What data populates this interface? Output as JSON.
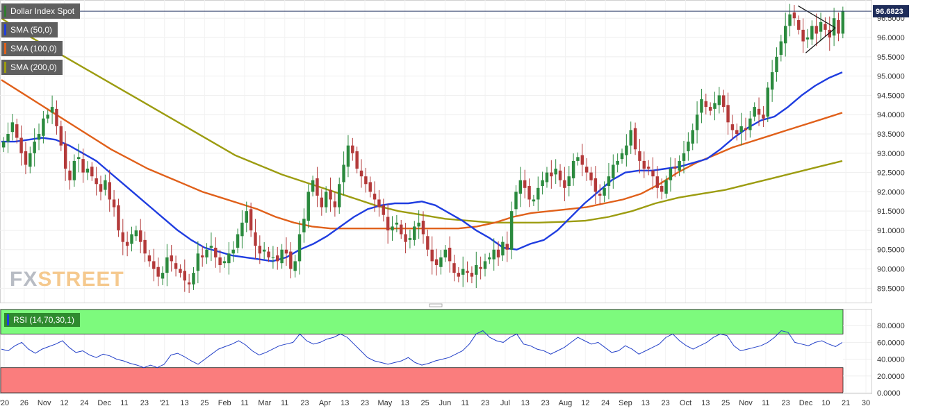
{
  "chart_data": {
    "type": "candlestick",
    "legend": {
      "main": "Dollar Index Spot",
      "series": [
        {
          "name": "SMA (50,0)",
          "color": "#1f3de0"
        },
        {
          "name": "SMA (100,0)",
          "color": "#e0601a"
        },
        {
          "name": "SMA (200,0)",
          "color": "#9c9c10"
        }
      ]
    },
    "last_price": "96.6823",
    "price_axis": {
      "ylim": [
        89.2,
        96.9
      ],
      "ticks": [
        "96.5000",
        "96.0000",
        "95.5000",
        "95.0000",
        "94.5000",
        "94.0000",
        "93.5000",
        "93.0000",
        "92.5000",
        "92.0000",
        "91.5000",
        "91.0000",
        "90.5000",
        "90.0000",
        "89.5000"
      ]
    },
    "x_axis": {
      "ticks": [
        "'20",
        "26",
        "Nov",
        "12",
        "24",
        "Dec",
        "11",
        "23",
        "'21",
        "13",
        "25",
        "Feb",
        "11",
        "Mar",
        "11",
        "23",
        "Apr",
        "13",
        "23",
        "May",
        "13",
        "25",
        "Jun",
        "11",
        "23",
        "Jul",
        "13",
        "23",
        "Aug",
        "12",
        "24",
        "Sep",
        "13",
        "23",
        "Oct",
        "13",
        "25",
        "Nov",
        "11",
        "23",
        "Dec",
        "10",
        "21",
        "30"
      ]
    },
    "close": [
      93.3,
      93.5,
      93.8,
      93.4,
      93.0,
      92.7,
      93.0,
      93.3,
      93.5,
      93.9,
      94.0,
      94.2,
      93.7,
      93.2,
      92.6,
      92.3,
      92.8,
      92.9,
      92.5,
      92.6,
      92.4,
      92.2,
      92.0,
      92.3,
      91.8,
      91.6,
      91.0,
      90.7,
      90.6,
      90.9,
      91.0,
      90.7,
      90.4,
      90.2,
      90.0,
      89.8,
      89.9,
      90.3,
      90.2,
      90.0,
      89.9,
      89.7,
      89.6,
      89.9,
      90.4,
      90.3,
      90.5,
      90.6,
      90.3,
      90.1,
      90.2,
      90.4,
      90.5,
      90.9,
      91.2,
      91.5,
      91.0,
      90.6,
      90.4,
      90.5,
      90.3,
      90.3,
      90.2,
      90.5,
      90.4,
      90.0,
      90.2,
      90.9,
      91.3,
      92.0,
      92.3,
      91.9,
      91.6,
      92.0,
      91.8,
      91.6,
      92.2,
      92.7,
      93.2,
      93.0,
      92.6,
      92.4,
      92.2,
      92.0,
      91.8,
      91.6,
      91.4,
      91.0,
      91.1,
      91.2,
      90.9,
      90.7,
      90.8,
      91.1,
      91.2,
      90.9,
      90.5,
      90.2,
      90.1,
      90.3,
      90.5,
      90.2,
      89.9,
      89.8,
      90.0,
      89.9,
      89.8,
      90.1,
      90.0,
      90.2,
      90.3,
      90.5,
      90.3,
      90.7,
      90.5,
      91.5,
      92.0,
      92.3,
      92.1,
      91.8,
      91.8,
      92.1,
      92.3,
      92.5,
      92.4,
      92.6,
      92.3,
      92.1,
      92.4,
      92.8,
      92.9,
      92.7,
      92.5,
      92.3,
      92.0,
      91.9,
      92.1,
      92.4,
      92.7,
      92.8,
      93.0,
      93.2,
      93.6,
      93.1,
      92.8,
      92.6,
      92.6,
      92.4,
      92.1,
      92.0,
      92.3,
      92.6,
      92.6,
      92.8,
      93.0,
      93.3,
      93.6,
      94.0,
      94.4,
      94.2,
      94.1,
      94.3,
      94.5,
      94.2,
      93.8,
      93.6,
      93.5,
      93.7,
      93.6,
      93.9,
      94.2,
      94.0,
      93.9,
      94.7,
      95.1,
      95.5,
      95.9,
      96.3,
      96.6,
      96.5,
      96.2,
      95.9,
      96.0,
      96.3,
      96.1,
      96.4,
      96.2,
      96.0,
      96.5,
      96.1,
      96.68
    ],
    "sma50": [
      93.3,
      93.3,
      93.35,
      93.4,
      93.35,
      93.2,
      93.0,
      92.8,
      92.5,
      92.2,
      91.9,
      91.6,
      91.3,
      91.0,
      90.75,
      90.55,
      90.45,
      90.35,
      90.3,
      90.25,
      90.2,
      90.3,
      90.5,
      90.65,
      90.85,
      91.1,
      91.35,
      91.55,
      91.65,
      91.7,
      91.7,
      91.75,
      91.65,
      91.45,
      91.25,
      91.0,
      90.8,
      90.55,
      90.5,
      90.65,
      90.75,
      91.0,
      91.35,
      91.7,
      92.0,
      92.3,
      92.5,
      92.55,
      92.55,
      92.6,
      92.65,
      92.75,
      92.85,
      93.1,
      93.4,
      93.65,
      93.85,
      93.95,
      94.2,
      94.5,
      94.75,
      94.95,
      95.1
    ],
    "sma100": [
      94.9,
      94.6,
      94.3,
      94.0,
      93.7,
      93.4,
      93.1,
      92.85,
      92.6,
      92.4,
      92.2,
      92.0,
      91.85,
      91.7,
      91.55,
      91.35,
      91.2,
      91.1,
      91.05,
      91.05,
      91.05,
      91.05,
      91.05,
      91.05,
      91.05,
      91.05,
      91.1,
      91.2,
      91.35,
      91.45,
      91.5,
      91.55,
      91.6,
      91.7,
      91.8,
      91.95,
      92.2,
      92.5,
      92.75,
      92.95,
      93.15,
      93.3,
      93.45,
      93.6,
      93.75,
      93.9,
      94.05
    ],
    "sma200": [
      96.5,
      96.1,
      95.75,
      95.4,
      95.05,
      94.7,
      94.35,
      94.0,
      93.65,
      93.3,
      92.95,
      92.7,
      92.45,
      92.25,
      92.05,
      91.85,
      91.65,
      91.5,
      91.4,
      91.3,
      91.25,
      91.2,
      91.2,
      91.2,
      91.22,
      91.25,
      91.35,
      91.5,
      91.7,
      91.85,
      91.95,
      92.05,
      92.2,
      92.35,
      92.5,
      92.65,
      92.8
    ],
    "triangle": {
      "upper": [
        [
          0.946,
          96.82
        ],
        [
          0.982,
          96.25
        ]
      ],
      "lower": [
        [
          0.955,
          95.6
        ],
        [
          0.982,
          96.25
        ]
      ]
    },
    "rsi": {
      "label": "RSI (14,70,30,1)",
      "overbought": 70,
      "oversold": 30,
      "ticks": [
        "80.0000",
        "60.0000",
        "40.0000",
        "20.0000",
        "0.0000"
      ],
      "values": [
        52,
        50,
        56,
        60,
        52,
        47,
        52,
        55,
        58,
        62,
        54,
        48,
        50,
        45,
        42,
        46,
        44,
        40,
        38,
        35,
        33,
        30,
        33,
        30,
        34,
        45,
        47,
        43,
        38,
        34,
        40,
        46,
        52,
        55,
        58,
        62,
        57,
        50,
        45,
        48,
        52,
        56,
        58,
        60,
        70,
        62,
        58,
        60,
        64,
        66,
        70,
        66,
        58,
        50,
        42,
        38,
        36,
        34,
        36,
        38,
        42,
        36,
        33,
        35,
        38,
        40,
        42,
        46,
        50,
        58,
        70,
        74,
        66,
        62,
        60,
        66,
        70,
        58,
        56,
        52,
        50,
        46,
        50,
        54,
        60,
        66,
        62,
        58,
        60,
        54,
        48,
        50,
        56,
        52,
        46,
        50,
        54,
        58,
        66,
        70,
        62,
        56,
        52,
        56,
        60,
        66,
        70,
        68,
        56,
        50,
        52,
        54,
        56,
        60,
        66,
        74,
        72,
        60,
        58,
        56,
        60,
        62,
        58,
        55,
        60
      ]
    }
  }
}
